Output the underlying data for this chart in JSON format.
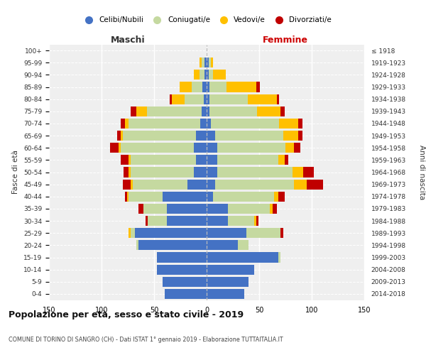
{
  "age_groups_bottom_to_top": [
    "0-4",
    "5-9",
    "10-14",
    "15-19",
    "20-24",
    "25-29",
    "30-34",
    "35-39",
    "40-44",
    "45-49",
    "50-54",
    "55-59",
    "60-64",
    "65-69",
    "70-74",
    "75-79",
    "80-84",
    "85-89",
    "90-94",
    "95-99",
    "100+"
  ],
  "birth_years_bottom_to_top": [
    "2014-2018",
    "2009-2013",
    "2004-2008",
    "1999-2003",
    "1994-1998",
    "1989-1993",
    "1984-1988",
    "1979-1983",
    "1974-1978",
    "1969-1973",
    "1964-1968",
    "1959-1963",
    "1954-1958",
    "1949-1953",
    "1944-1948",
    "1939-1943",
    "1934-1938",
    "1929-1933",
    "1924-1928",
    "1919-1923",
    "≤ 1918"
  ],
  "maschi": {
    "celibi": [
      40,
      42,
      47,
      47,
      65,
      68,
      38,
      38,
      42,
      18,
      12,
      10,
      12,
      10,
      6,
      5,
      3,
      4,
      2,
      2,
      0
    ],
    "coniugati": [
      0,
      0,
      0,
      0,
      2,
      4,
      18,
      22,
      32,
      52,
      60,
      62,
      70,
      70,
      68,
      52,
      18,
      10,
      5,
      3,
      0
    ],
    "vedovi": [
      0,
      0,
      0,
      0,
      0,
      2,
      0,
      0,
      2,
      2,
      2,
      2,
      2,
      2,
      4,
      10,
      12,
      12,
      5,
      2,
      0
    ],
    "divorziati": [
      0,
      0,
      0,
      0,
      0,
      0,
      2,
      5,
      2,
      8,
      5,
      8,
      8,
      3,
      4,
      5,
      2,
      0,
      0,
      0,
      0
    ]
  },
  "femmine": {
    "nubili": [
      36,
      40,
      45,
      68,
      30,
      38,
      20,
      20,
      6,
      8,
      10,
      10,
      10,
      8,
      4,
      3,
      3,
      3,
      2,
      2,
      0
    ],
    "coniugate": [
      0,
      0,
      0,
      2,
      10,
      32,
      25,
      40,
      58,
      75,
      72,
      58,
      65,
      65,
      65,
      45,
      36,
      16,
      4,
      2,
      0
    ],
    "vedove": [
      0,
      0,
      0,
      0,
      0,
      0,
      2,
      3,
      4,
      12,
      10,
      6,
      8,
      14,
      18,
      22,
      28,
      28,
      12,
      2,
      0
    ],
    "divorziate": [
      0,
      0,
      0,
      0,
      0,
      3,
      2,
      4,
      6,
      16,
      10,
      4,
      6,
      4,
      4,
      4,
      2,
      4,
      0,
      0,
      0
    ]
  },
  "colors": {
    "celibi_nubili": "#4472c4",
    "coniugati": "#c5d9a0",
    "vedovi": "#ffc000",
    "divorziati": "#c00000"
  },
  "title": "Popolazione per età, sesso e stato civile - 2019",
  "subtitle": "COMUNE DI TORINO DI SANGRO (CH) - Dati ISTAT 1° gennaio 2019 - Elaborazione TUTTAITALIA.IT",
  "ylabel_left": "Fasce di età",
  "ylabel_right": "Anni di nascita",
  "xlabel_maschi": "Maschi",
  "xlabel_femmine": "Femmine",
  "legend_labels": [
    "Celibi/Nubili",
    "Coniugati/e",
    "Vedovi/e",
    "Divorziati/e"
  ],
  "xlim": 150,
  "bg_color": "#efefef"
}
